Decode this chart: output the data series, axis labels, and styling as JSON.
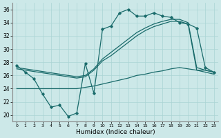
{
  "xlabel": "Humidex (Indice chaleur)",
  "bg_color": "#cce8e8",
  "line_color": "#1a6b6b",
  "grid_color": "#aad4d4",
  "x_ticks": [
    0,
    1,
    2,
    3,
    4,
    5,
    6,
    7,
    8,
    9,
    10,
    11,
    12,
    13,
    14,
    15,
    16,
    17,
    18,
    19,
    20,
    21,
    22,
    23
  ],
  "ylim": [
    19,
    37
  ],
  "yticks": [
    20,
    22,
    24,
    26,
    28,
    30,
    32,
    34,
    36
  ],
  "line1_x": [
    0,
    1,
    2,
    3,
    4,
    5,
    6,
    7,
    8,
    9,
    10,
    11,
    12,
    13,
    14,
    15,
    16,
    17,
    18,
    19,
    20,
    21,
    22,
    23
  ],
  "line1_y": [
    27.5,
    26.5,
    25.5,
    23.2,
    21.2,
    21.5,
    19.8,
    20.3,
    27.8,
    23.3,
    33.0,
    33.5,
    35.5,
    36.0,
    35.0,
    35.0,
    35.5,
    35.0,
    34.8,
    34.0,
    33.8,
    33.2,
    27.2,
    26.5
  ],
  "line2_x": [
    0,
    1,
    2,
    3,
    4,
    5,
    6,
    7,
    8,
    9,
    10,
    11,
    12,
    13,
    14,
    15,
    16,
    17,
    18,
    19,
    20,
    21,
    22,
    23
  ],
  "line2_y": [
    27.2,
    27.0,
    26.8,
    26.6,
    26.4,
    26.2,
    26.0,
    25.8,
    26.0,
    27.0,
    28.5,
    29.5,
    30.5,
    31.5,
    32.5,
    33.2,
    33.8,
    34.2,
    34.5,
    34.5,
    34.0,
    27.2,
    26.8,
    26.5
  ],
  "line3_x": [
    0,
    1,
    2,
    3,
    4,
    5,
    6,
    7,
    8,
    9,
    10,
    11,
    12,
    13,
    14,
    15,
    16,
    17,
    18,
    19,
    20,
    21,
    22,
    23
  ],
  "line3_y": [
    27.0,
    26.8,
    26.6,
    26.4,
    26.2,
    26.0,
    25.8,
    25.6,
    25.8,
    26.8,
    28.2,
    29.0,
    30.0,
    31.0,
    32.0,
    32.8,
    33.4,
    33.8,
    34.2,
    34.2,
    33.8,
    26.8,
    26.5,
    26.2
  ],
  "line4_x": [
    0,
    1,
    2,
    3,
    4,
    5,
    6,
    7,
    8,
    9,
    10,
    11,
    12,
    13,
    14,
    15,
    16,
    17,
    18,
    19,
    20,
    21,
    22,
    23
  ],
  "line4_y": [
    24.0,
    24.0,
    24.0,
    24.0,
    24.0,
    24.0,
    24.0,
    24.0,
    24.2,
    24.4,
    24.7,
    25.0,
    25.3,
    25.6,
    26.0,
    26.2,
    26.5,
    26.7,
    27.0,
    27.2,
    27.0,
    26.8,
    26.8,
    26.5
  ]
}
